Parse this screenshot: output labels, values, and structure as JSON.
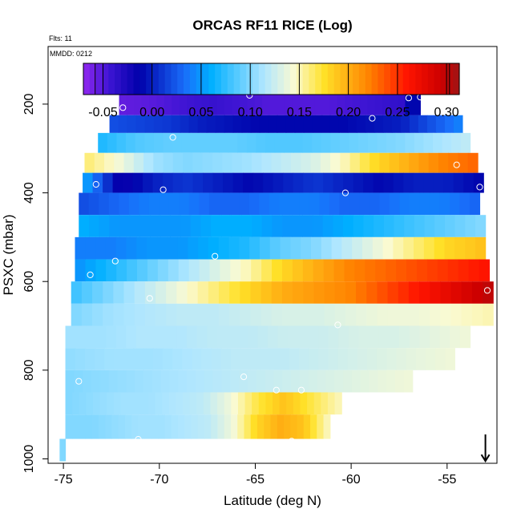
{
  "chart_data": {
    "type": "heatmap",
    "title": "ORCAS RF11 RICE (Log)",
    "flights_label": "Flts: 11",
    "date_label": "MMDD: 0212",
    "xlabel": "Latitude (deg N)",
    "ylabel": "PSXC (mbar)",
    "xlim": [
      -75.8,
      -52.4
    ],
    "ylim": [
      1010,
      70
    ],
    "x_ticks": [
      -75,
      -70,
      -65,
      -60,
      -55
    ],
    "x_tick_labels": [
      "-75",
      "-70",
      "-65",
      "-60",
      "-55"
    ],
    "y_ticks": [
      200,
      400,
      600,
      800,
      1000
    ],
    "y_tick_labels": [
      "200",
      "400",
      "600",
      "800",
      "1000"
    ],
    "colorbar": {
      "range": [
        -0.07,
        0.313
      ],
      "ticks": [
        -0.05,
        0.0,
        0.05,
        0.1,
        0.15,
        0.2,
        0.25,
        0.3
      ],
      "tick_labels": [
        "-0.05",
        "0.00",
        "0.05",
        "0.10",
        "0.15",
        "0.20",
        "0.25",
        "0.30"
      ]
    },
    "rows": [
      {
        "p_top": 175,
        "p_bot": 225,
        "lat_start": -72.1,
        "lat_end": -56.4,
        "values": [
          -0.055,
          -0.052,
          -0.045,
          -0.04,
          -0.045,
          -0.05,
          -0.05,
          -0.05,
          -0.045,
          -0.04,
          -0.035
        ],
        "end_value": -0.01
      },
      {
        "p_top": 225,
        "p_bot": 265,
        "lat_start": -72.6,
        "lat_end": -54.2,
        "values": [
          0.02,
          0.015,
          0.01,
          0.0,
          -0.005,
          -0.01,
          -0.01,
          -0.01,
          -0.01,
          -0.005,
          0.0,
          0.02,
          0.04
        ]
      },
      {
        "p_top": 265,
        "p_bot": 310,
        "lat_start": -73.2,
        "lat_end": -53.8,
        "values": [
          0.07,
          0.085,
          0.09,
          0.09,
          0.09,
          0.085,
          0.085,
          0.09,
          0.095,
          0.1,
          0.11,
          0.12
        ]
      },
      {
        "p_top": 310,
        "p_bot": 355,
        "lat_start": -73.9,
        "lat_end": -53.4,
        "values": [
          0.16,
          0.14,
          0.11,
          0.1,
          0.105,
          0.11,
          0.12,
          0.13,
          0.15,
          0.18,
          0.2,
          0.22,
          0.23
        ]
      },
      {
        "p_top": 355,
        "p_bot": 400,
        "lat_start": -74.0,
        "lat_end": -53.1,
        "values": [
          0.05,
          -0.02,
          0.0,
          0.01,
          0.0,
          -0.01,
          0.0,
          0.01,
          0.0,
          -0.01,
          0.0,
          0.0,
          -0.01
        ]
      },
      {
        "p_top": 400,
        "p_bot": 450,
        "lat_start": -74.2,
        "lat_end": -53.3,
        "values": [
          0.02,
          0.03,
          0.04,
          0.04,
          0.03,
          0.03,
          0.04,
          0.04,
          0.03,
          0.03,
          0.04,
          0.04,
          0.03
        ]
      },
      {
        "p_top": 450,
        "p_bot": 500,
        "lat_start": -74.2,
        "lat_end": -53.0,
        "values": [
          0.06,
          0.05,
          0.05,
          0.05,
          0.06,
          0.06,
          0.05,
          0.05,
          0.06,
          0.07,
          0.08,
          0.09,
          0.1
        ]
      },
      {
        "p_top": 500,
        "p_bot": 550,
        "lat_start": -74.4,
        "lat_end": -53.0,
        "values": [
          0.04,
          0.04,
          0.05,
          0.05,
          0.06,
          0.07,
          0.09,
          0.1,
          0.12,
          0.14,
          0.16,
          0.18,
          0.19
        ]
      },
      {
        "p_top": 550,
        "p_bot": 600,
        "lat_start": -74.4,
        "lat_end": -52.8,
        "values": [
          0.05,
          0.07,
          0.09,
          0.11,
          0.13,
          0.15,
          0.18,
          0.2,
          0.22,
          0.23,
          0.24,
          0.25,
          0.26
        ]
      },
      {
        "p_top": 600,
        "p_bot": 650,
        "lat_start": -74.6,
        "lat_end": -52.6,
        "values": [
          0.08,
          0.1,
          0.12,
          0.14,
          0.16,
          0.18,
          0.2,
          0.21,
          0.22,
          0.24,
          0.26,
          0.28,
          0.3
        ]
      },
      {
        "p_top": 650,
        "p_bot": 700,
        "lat_start": -74.6,
        "lat_end": -52.6,
        "values": [
          0.1,
          0.11,
          0.115,
          0.12,
          0.12,
          0.125,
          0.13,
          0.13,
          0.135,
          0.14,
          0.14,
          0.145,
          0.15
        ]
      },
      {
        "p_top": 700,
        "p_bot": 750,
        "lat_start": -74.9,
        "lat_end": -53.8,
        "values": [
          0.11,
          0.11,
          0.115,
          0.115,
          0.12,
          0.12,
          0.125,
          0.125,
          0.13,
          0.13,
          0.135,
          0.14
        ]
      },
      {
        "p_top": 750,
        "p_bot": 800,
        "lat_start": -74.9,
        "lat_end": -54.6,
        "values": [
          0.105,
          0.11,
          0.11,
          0.115,
          0.12,
          0.12,
          0.125,
          0.13,
          0.135,
          0.14
        ]
      },
      {
        "p_top": 800,
        "p_bot": 850,
        "lat_start": -74.9,
        "lat_end": -56.8,
        "values": [
          0.1,
          0.105,
          0.11,
          0.115,
          0.12,
          0.125,
          0.13,
          0.135,
          0.14
        ]
      },
      {
        "p_top": 850,
        "p_bot": 900,
        "lat_start": -74.9,
        "lat_end": -60.5,
        "values": [
          0.1,
          0.105,
          0.11,
          0.11,
          0.115,
          0.12,
          0.14,
          0.17,
          0.19,
          0.17,
          0.15
        ]
      },
      {
        "p_top": 900,
        "p_bot": 955,
        "lat_start": -74.9,
        "lat_end": -61.1,
        "values": [
          0.1,
          0.1,
          0.105,
          0.11,
          0.11,
          0.115,
          0.12,
          0.14,
          0.18,
          0.2,
          0.19,
          0.15
        ]
      },
      {
        "p_top": 955,
        "p_bot": 1005,
        "lat_start": -75.2,
        "lat_end": -74.9,
        "values": [
          0.1
        ]
      }
    ],
    "markers": [
      {
        "lat": -65.3,
        "p": 180
      },
      {
        "lat": -57.0,
        "p": 186
      },
      {
        "lat": -56.4,
        "p": 184
      },
      {
        "lat": -71.9,
        "p": 208
      },
      {
        "lat": -58.9,
        "p": 232
      },
      {
        "lat": -69.3,
        "p": 275
      },
      {
        "lat": -54.5,
        "p": 337
      },
      {
        "lat": -73.3,
        "p": 381
      },
      {
        "lat": -69.8,
        "p": 393
      },
      {
        "lat": -60.3,
        "p": 400
      },
      {
        "lat": -53.3,
        "p": 387
      },
      {
        "lat": -74.5,
        "p": 436
      },
      {
        "lat": -72.3,
        "p": 554
      },
      {
        "lat": -67.1,
        "p": 543
      },
      {
        "lat": -73.6,
        "p": 585
      },
      {
        "lat": -70.5,
        "p": 638
      },
      {
        "lat": -52.9,
        "p": 620
      },
      {
        "lat": -60.7,
        "p": 698
      },
      {
        "lat": -74.2,
        "p": 825
      },
      {
        "lat": -65.6,
        "p": 815
      },
      {
        "lat": -63.9,
        "p": 845
      },
      {
        "lat": -62.6,
        "p": 845
      },
      {
        "lat": -71.1,
        "p": 956
      },
      {
        "lat": -63.1,
        "p": 960
      }
    ],
    "arrow": {
      "lat": -53.0,
      "p_from": 945,
      "p_to": 1005
    }
  }
}
